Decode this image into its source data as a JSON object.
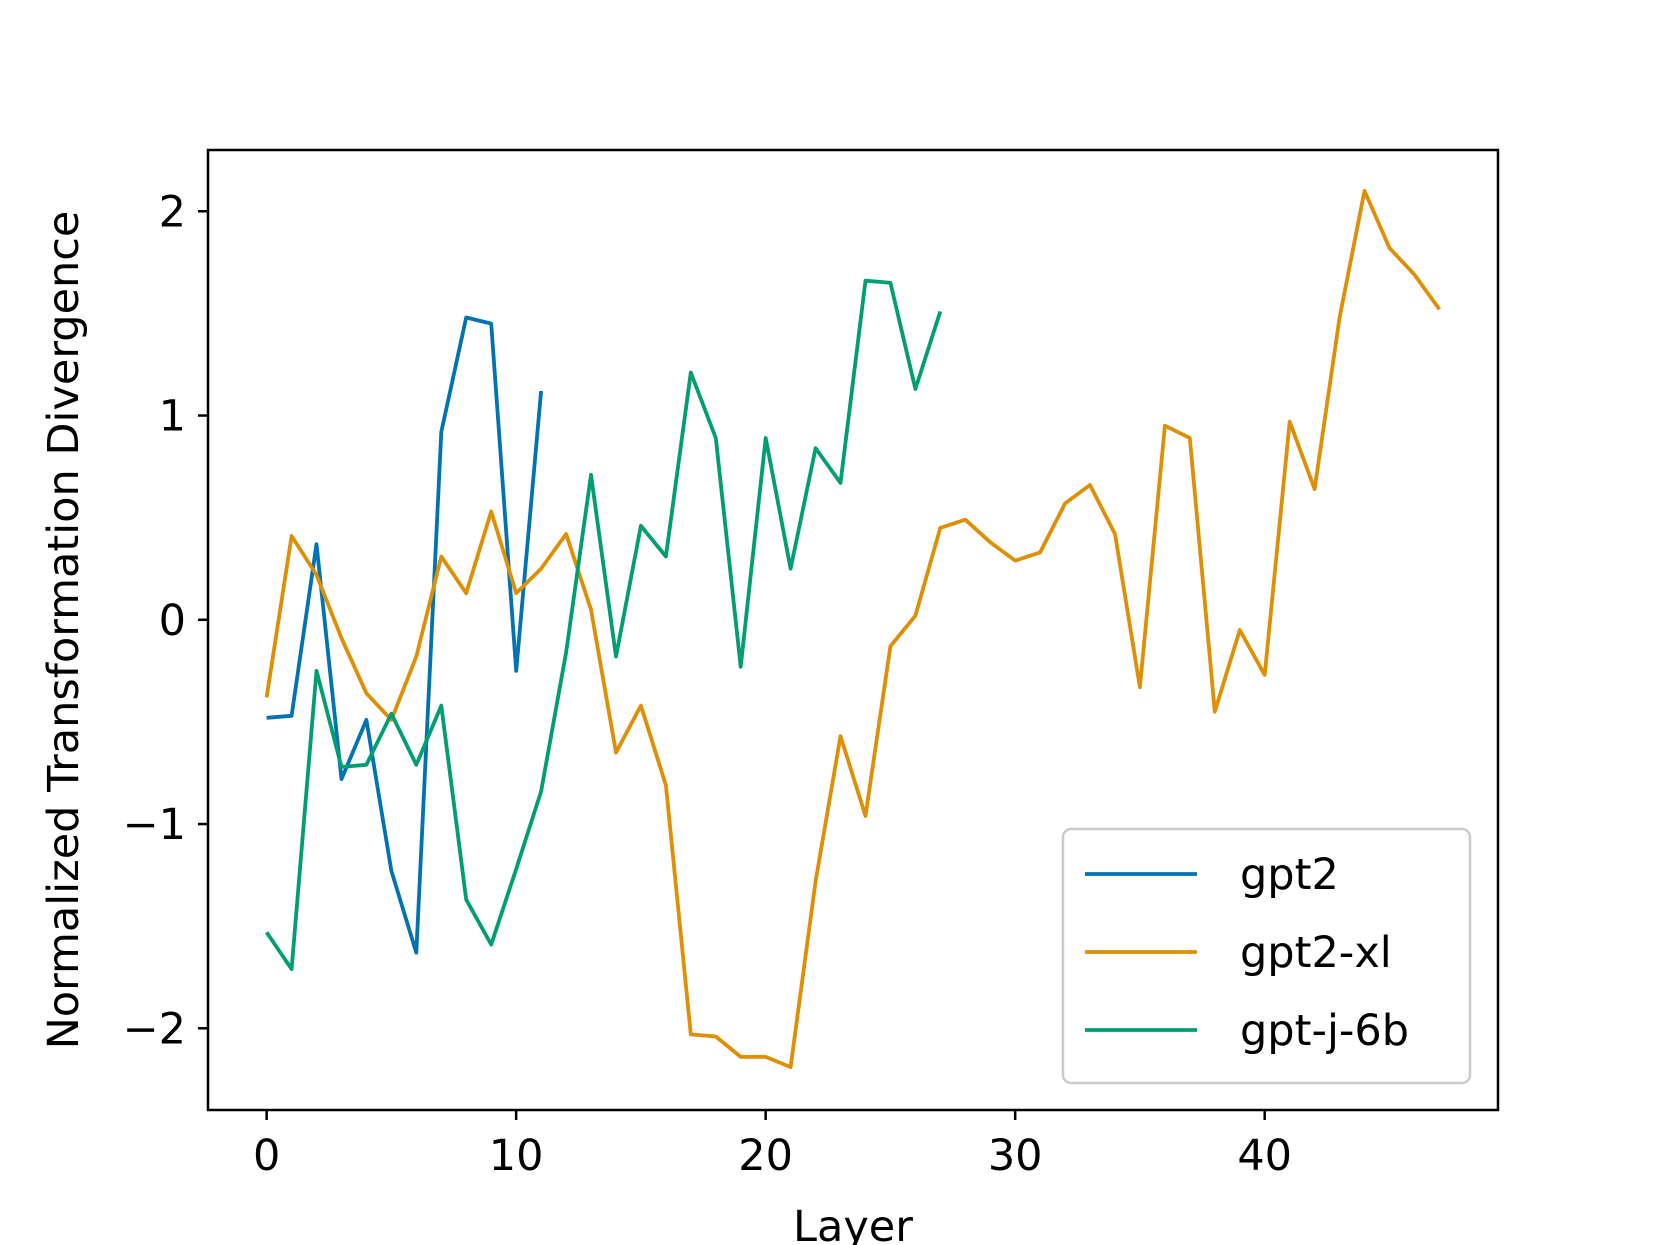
{
  "chart_data": {
    "type": "line",
    "title": "",
    "xlabel": "Layer",
    "ylabel": "Normalized Transformation Divergence",
    "xlim": [
      -2.35,
      49.35
    ],
    "ylim": [
      -2.4,
      2.3
    ],
    "xticks": [
      0,
      10,
      20,
      30,
      40
    ],
    "xtick_labels": [
      "0",
      "10",
      "20",
      "30",
      "40"
    ],
    "yticks": [
      -2,
      -1,
      0,
      1,
      2
    ],
    "ytick_labels": [
      "−2",
      "−1",
      "0",
      "1",
      "2"
    ],
    "grid": false,
    "legend_position": "lower-right",
    "series": [
      {
        "name": "gpt2",
        "color": "#0173b2",
        "x": [
          0,
          1,
          2,
          3,
          4,
          5,
          6,
          7,
          8,
          9,
          10,
          11
        ],
        "values": [
          -0.48,
          -0.47,
          0.37,
          -0.78,
          -0.49,
          -1.23,
          -1.63,
          0.92,
          1.48,
          1.45,
          -0.25,
          1.12
        ]
      },
      {
        "name": "gpt2-xl",
        "color": "#de8f05",
        "x": [
          0,
          1,
          2,
          3,
          4,
          5,
          6,
          7,
          8,
          9,
          10,
          11,
          12,
          13,
          14,
          15,
          16,
          17,
          18,
          19,
          20,
          21,
          22,
          23,
          24,
          25,
          26,
          27,
          28,
          29,
          30,
          31,
          32,
          33,
          34,
          35,
          36,
          37,
          38,
          39,
          40,
          41,
          42,
          43,
          44,
          45,
          46,
          47
        ],
        "values": [
          -0.38,
          0.41,
          0.22,
          -0.09,
          -0.36,
          -0.49,
          -0.18,
          0.31,
          0.13,
          0.53,
          0.13,
          0.25,
          0.42,
          0.05,
          -0.65,
          -0.42,
          -0.81,
          -2.03,
          -2.04,
          -2.14,
          -2.14,
          -2.19,
          -1.28,
          -0.57,
          -0.96,
          -0.13,
          0.02,
          0.45,
          0.49,
          0.38,
          0.29,
          0.33,
          0.57,
          0.66,
          0.42,
          -0.33,
          0.95,
          0.89,
          -0.45,
          -0.05,
          -0.27,
          0.97,
          0.64,
          1.48,
          2.1,
          1.82,
          1.69,
          1.52
        ]
      },
      {
        "name": "gpt-j-6b",
        "color": "#029e73",
        "x": [
          0,
          1,
          2,
          3,
          4,
          5,
          6,
          7,
          8,
          9,
          10,
          11,
          12,
          13,
          14,
          15,
          16,
          17,
          18,
          19,
          20,
          21,
          22,
          23,
          24,
          25,
          26,
          27
        ],
        "values": [
          -1.53,
          -1.71,
          -0.25,
          -0.72,
          -0.71,
          -0.46,
          -0.71,
          -0.42,
          -1.37,
          -1.59,
          -1.22,
          -0.84,
          -0.16,
          0.71,
          -0.18,
          0.46,
          0.31,
          1.21,
          0.89,
          -0.23,
          0.89,
          0.25,
          0.84,
          0.67,
          1.66,
          1.65,
          1.13,
          1.51
        ]
      }
    ]
  }
}
